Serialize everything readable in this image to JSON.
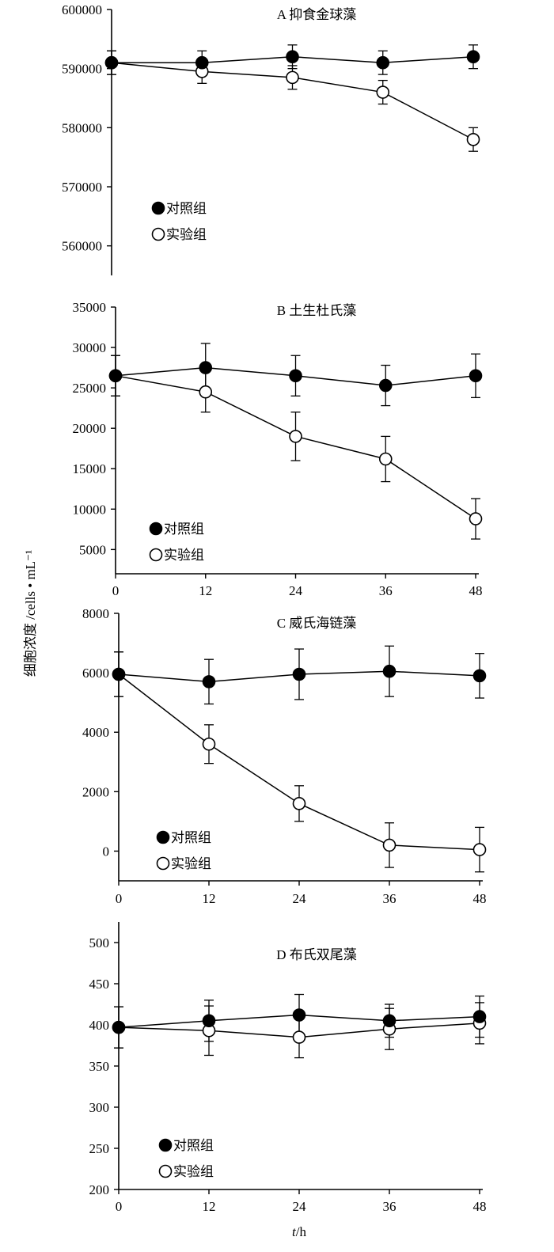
{
  "shared_ylabel": "细胞浓度 /cells • mL⁻¹",
  "shared_xlabel": "t/h",
  "chart_data": [
    {
      "type": "line",
      "title": "A  抑食金球藻",
      "x": [
        0,
        12,
        24,
        36,
        48
      ],
      "x_ticks_shown": false,
      "ylim": [
        555000,
        600000
      ],
      "y_ticks": [
        600000,
        590000,
        580000,
        570000,
        560000
      ],
      "series": [
        {
          "name": "对照组",
          "marker": "filled-circle",
          "values": [
            591000,
            591000,
            592000,
            591000,
            592000
          ],
          "error": [
            2000,
            2000,
            2000,
            2000,
            2000
          ]
        },
        {
          "name": "实验组",
          "marker": "open-circle",
          "values": [
            591000,
            589500,
            588500,
            586000,
            578000
          ],
          "error": [
            2000,
            2000,
            2000,
            2000,
            2000
          ]
        }
      ],
      "legend_position": "lower-left"
    },
    {
      "type": "line",
      "title": "B  土生杜氏藻",
      "x": [
        0,
        12,
        24,
        36,
        48
      ],
      "x_ticks_shown": true,
      "ylim": [
        2000,
        35000
      ],
      "y_ticks": [
        35000,
        30000,
        25000,
        20000,
        15000,
        10000,
        5000
      ],
      "series": [
        {
          "name": "对照组",
          "marker": "filled-circle",
          "values": [
            26500,
            27500,
            26500,
            25300,
            26500
          ],
          "error": [
            2500,
            3000,
            2500,
            2500,
            2700
          ]
        },
        {
          "name": "实验组",
          "marker": "open-circle",
          "values": [
            26500,
            24500,
            19000,
            16200,
            8800
          ],
          "error": [
            2500,
            2500,
            3000,
            2800,
            2500
          ]
        }
      ],
      "legend_position": "lower-left"
    },
    {
      "type": "line",
      "title": "C  威氏海链藻",
      "x": [
        0,
        12,
        24,
        36,
        48
      ],
      "x_ticks_shown": true,
      "ylim": [
        -1000,
        8000
      ],
      "y_ticks": [
        8000,
        6000,
        4000,
        2000,
        0
      ],
      "series": [
        {
          "name": "对照组",
          "marker": "filled-circle",
          "values": [
            5950,
            5700,
            5950,
            6050,
            5900
          ],
          "error": [
            750,
            750,
            850,
            850,
            750
          ]
        },
        {
          "name": "实验组",
          "marker": "open-circle",
          "values": [
            5950,
            3600,
            1600,
            200,
            50
          ],
          "error": [
            750,
            650,
            600,
            750,
            750
          ]
        }
      ],
      "legend_position": "lower-left"
    },
    {
      "type": "line",
      "title": "D  布氏双尾藻",
      "x": [
        0,
        12,
        24,
        36,
        48
      ],
      "x_ticks_shown": true,
      "ylim": [
        200,
        525
      ],
      "y_ticks": [
        500,
        450,
        400,
        350,
        300,
        250,
        200
      ],
      "series": [
        {
          "name": "对照组",
          "marker": "filled-circle",
          "values": [
            397,
            405,
            412,
            405,
            410
          ],
          "error": [
            25,
            25,
            25,
            20,
            25
          ]
        },
        {
          "name": "实验组",
          "marker": "open-circle",
          "values": [
            397,
            393,
            385,
            395,
            402
          ],
          "error": [
            25,
            30,
            25,
            25,
            25
          ]
        }
      ],
      "legend_position": "lower-left"
    }
  ]
}
